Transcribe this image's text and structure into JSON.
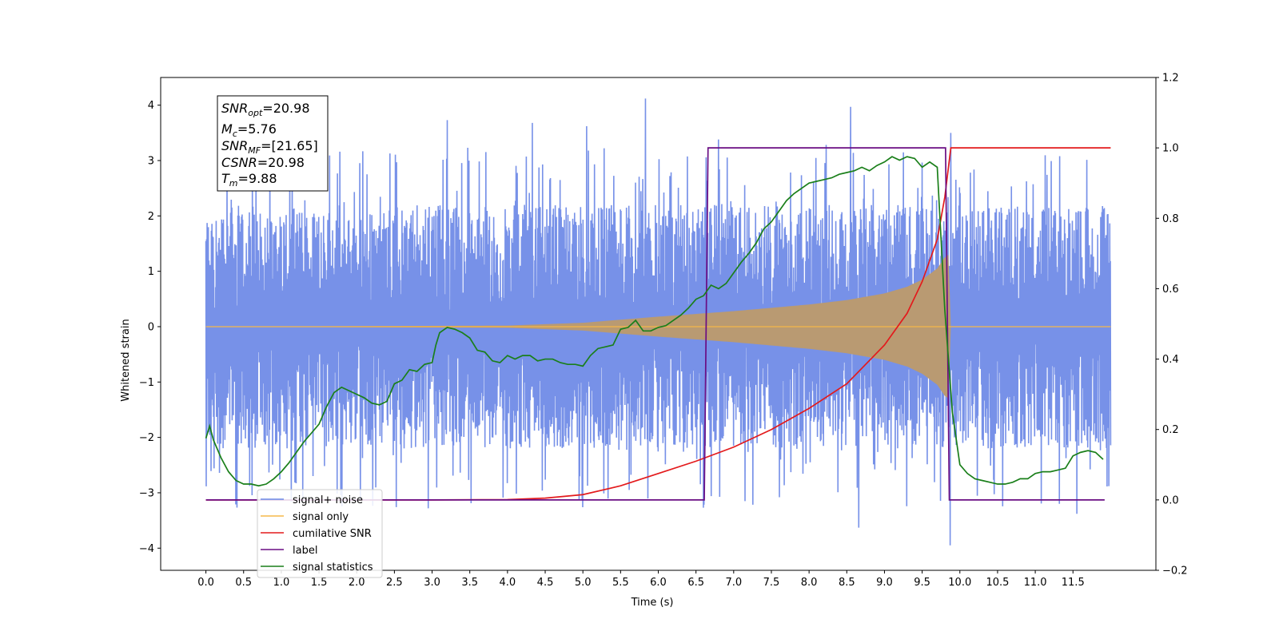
{
  "chart_data": {
    "type": "line",
    "xlabel": "Time (s)",
    "ylabel": "Whitened strain",
    "ylabel_right": "",
    "xlim": [
      -0.6,
      12.6
    ],
    "ylim": [
      -4.4,
      4.5
    ],
    "ylim_right": [
      -0.2,
      1.2
    ],
    "x_ticks": [
      "0.0",
      "0.5",
      "1.0",
      "1.5",
      "2.0",
      "2.5",
      "3.0",
      "3.5",
      "4.0",
      "4.5",
      "5.0",
      "5.5",
      "6.0",
      "6.5",
      "7.0",
      "7.5",
      "8.0",
      "8.5",
      "9.0",
      "9.5",
      "10.0",
      "10.5",
      "11.0",
      "11.5"
    ],
    "y_ticks": [
      "−4",
      "−3",
      "−2",
      "−1",
      "0",
      "1",
      "2",
      "3",
      "4"
    ],
    "y_ticks_right": [
      "−0.2",
      "0.0",
      "0.2",
      "0.4",
      "0.6",
      "0.8",
      "1.0",
      "1.2"
    ],
    "grid": false,
    "legend_position": "bottom-left",
    "annotation": {
      "lines": [
        {
          "main": "SNR",
          "sub": "opt",
          "value": "=20.98"
        },
        {
          "main": "M",
          "sub": "c",
          "value": "=5.76"
        },
        {
          "main": "SNR",
          "sub": "MF",
          "value": "=[21.65]"
        },
        {
          "main": "CSNR",
          "sub": "",
          "value": "=20.98"
        },
        {
          "main": "T",
          "sub": "m",
          "value": "=9.88"
        }
      ]
    },
    "series": [
      {
        "name": "signal+ noise",
        "color": "#6b88e6",
        "axis": "left",
        "style": "noise",
        "t_start": 0.0,
        "t_end": 12.0,
        "typical_range": [
          -2.3,
          2.4
        ],
        "peaks": [
          {
            "x": 5.83,
            "y": 4.12
          },
          {
            "x": 8.55,
            "y": 3.97
          },
          {
            "x": 3.2,
            "y": 3.73
          },
          {
            "x": 4.33,
            "y": 3.68
          },
          {
            "x": 5.05,
            "y": 3.62
          },
          {
            "x": 9.88,
            "y": 3.5
          },
          {
            "x": 6.8,
            "y": 3.38
          },
          {
            "x": 9.87,
            "y": -3.95
          },
          {
            "x": 8.66,
            "y": -3.63
          },
          {
            "x": 11.55,
            "y": -3.38
          },
          {
            "x": 2.95,
            "y": -3.28
          },
          {
            "x": 6.6,
            "y": -3.27
          },
          {
            "x": 2.05,
            "y": -3.12
          },
          {
            "x": 7.15,
            "y": -3.15
          }
        ]
      },
      {
        "name": "signal only",
        "color": "#f5b84a",
        "axis": "left",
        "style": "chirp",
        "t_start": 0.0,
        "t_end": 12.0,
        "merger_time": 9.88,
        "envelope": [
          [
            0.0,
            0.0
          ],
          [
            4.0,
            0.02
          ],
          [
            5.0,
            0.07
          ],
          [
            6.0,
            0.18
          ],
          [
            7.0,
            0.28
          ],
          [
            8.0,
            0.4
          ],
          [
            8.5,
            0.48
          ],
          [
            9.0,
            0.6
          ],
          [
            9.3,
            0.72
          ],
          [
            9.5,
            0.85
          ],
          [
            9.7,
            1.05
          ],
          [
            9.8,
            1.25
          ],
          [
            9.85,
            1.3
          ],
          [
            9.88,
            0.0
          ],
          [
            12.0,
            0.0
          ]
        ]
      },
      {
        "name": "cumilative SNR",
        "color": "#e31a1c",
        "axis": "right",
        "x": [
          0.0,
          3.0,
          4.0,
          4.5,
          5.0,
          5.5,
          6.0,
          6.5,
          7.0,
          7.5,
          8.0,
          8.5,
          9.0,
          9.3,
          9.5,
          9.7,
          9.8,
          9.88,
          12.0
        ],
        "values": [
          0.0,
          0.0,
          0.001,
          0.005,
          0.015,
          0.04,
          0.075,
          0.11,
          0.15,
          0.2,
          0.26,
          0.33,
          0.44,
          0.53,
          0.62,
          0.74,
          0.86,
          1.0,
          1.0
        ]
      },
      {
        "name": "label",
        "color": "#6a0d83",
        "axis": "right",
        "x": [
          0.0,
          6.61,
          6.66,
          9.81,
          9.86,
          11.92
        ],
        "values": [
          0.0,
          0.0,
          1.0,
          1.0,
          0.0,
          0.0
        ]
      },
      {
        "name": "signal statistics",
        "color": "#1a7f1a",
        "axis": "right",
        "x": [
          0.0,
          0.05,
          0.1,
          0.2,
          0.3,
          0.4,
          0.5,
          0.6,
          0.7,
          0.8,
          0.9,
          1.0,
          1.1,
          1.2,
          1.3,
          1.4,
          1.5,
          1.6,
          1.7,
          1.8,
          1.9,
          2.0,
          2.1,
          2.2,
          2.3,
          2.4,
          2.5,
          2.6,
          2.7,
          2.8,
          2.9,
          3.0,
          3.05,
          3.1,
          3.2,
          3.3,
          3.4,
          3.5,
          3.6,
          3.7,
          3.8,
          3.9,
          4.0,
          4.1,
          4.2,
          4.3,
          4.4,
          4.5,
          4.6,
          4.7,
          4.8,
          4.9,
          5.0,
          5.1,
          5.2,
          5.3,
          5.4,
          5.5,
          5.6,
          5.7,
          5.8,
          5.9,
          6.0,
          6.1,
          6.2,
          6.3,
          6.4,
          6.5,
          6.6,
          6.7,
          6.8,
          6.9,
          7.0,
          7.1,
          7.2,
          7.3,
          7.4,
          7.5,
          7.6,
          7.7,
          7.8,
          7.9,
          8.0,
          8.1,
          8.2,
          8.3,
          8.4,
          8.5,
          8.6,
          8.7,
          8.8,
          8.9,
          9.0,
          9.1,
          9.2,
          9.3,
          9.4,
          9.5,
          9.6,
          9.7,
          9.8,
          9.9,
          10.0,
          10.1,
          10.2,
          10.3,
          10.4,
          10.5,
          10.6,
          10.7,
          10.8,
          10.9,
          11.0,
          11.1,
          11.2,
          11.3,
          11.4,
          11.5,
          11.6,
          11.7,
          11.8,
          11.9
        ],
        "values": [
          0.175,
          0.21,
          0.17,
          0.12,
          0.08,
          0.055,
          0.045,
          0.045,
          0.04,
          0.045,
          0.06,
          0.08,
          0.105,
          0.135,
          0.165,
          0.19,
          0.215,
          0.265,
          0.305,
          0.32,
          0.31,
          0.3,
          0.29,
          0.275,
          0.27,
          0.28,
          0.33,
          0.34,
          0.37,
          0.365,
          0.385,
          0.39,
          0.44,
          0.475,
          0.49,
          0.485,
          0.475,
          0.46,
          0.425,
          0.42,
          0.395,
          0.39,
          0.41,
          0.4,
          0.41,
          0.41,
          0.395,
          0.4,
          0.4,
          0.39,
          0.385,
          0.385,
          0.38,
          0.41,
          0.43,
          0.435,
          0.44,
          0.485,
          0.49,
          0.51,
          0.48,
          0.48,
          0.49,
          0.495,
          0.51,
          0.525,
          0.545,
          0.57,
          0.58,
          0.61,
          0.6,
          0.615,
          0.645,
          0.675,
          0.7,
          0.73,
          0.77,
          0.79,
          0.82,
          0.85,
          0.87,
          0.885,
          0.9,
          0.905,
          0.91,
          0.915,
          0.925,
          0.93,
          0.935,
          0.945,
          0.935,
          0.95,
          0.96,
          0.975,
          0.965,
          0.975,
          0.97,
          0.945,
          0.96,
          0.945,
          0.54,
          0.25,
          0.1,
          0.075,
          0.06,
          0.055,
          0.05,
          0.045,
          0.045,
          0.05,
          0.06,
          0.06,
          0.075,
          0.08,
          0.08,
          0.085,
          0.09,
          0.125,
          0.135,
          0.14,
          0.135,
          0.115
        ]
      }
    ]
  }
}
